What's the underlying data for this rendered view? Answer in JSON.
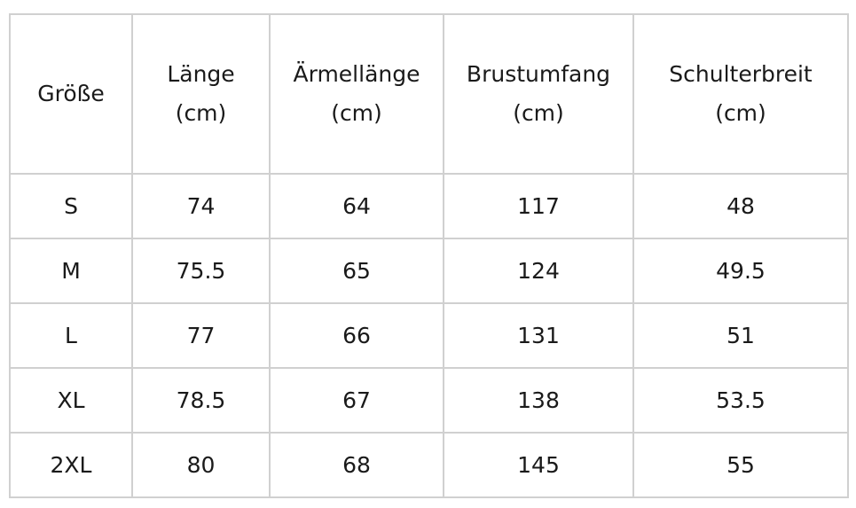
{
  "table": {
    "header": [
      [
        "Größe"
      ],
      [
        "Länge",
        "(cm)"
      ],
      [
        "Ärmellänge",
        "(cm)"
      ],
      [
        "Brustumfang",
        "(cm)"
      ],
      [
        "Schulterbreit",
        "(cm)"
      ]
    ],
    "rows": [
      [
        "S",
        74,
        64,
        117,
        48
      ],
      [
        "M",
        75.5,
        65,
        124,
        49.5
      ],
      [
        "L",
        77,
        66,
        131,
        51
      ],
      [
        "XL",
        78.5,
        67,
        138,
        53.5
      ],
      [
        "2XL",
        80,
        68,
        145,
        55
      ]
    ]
  }
}
